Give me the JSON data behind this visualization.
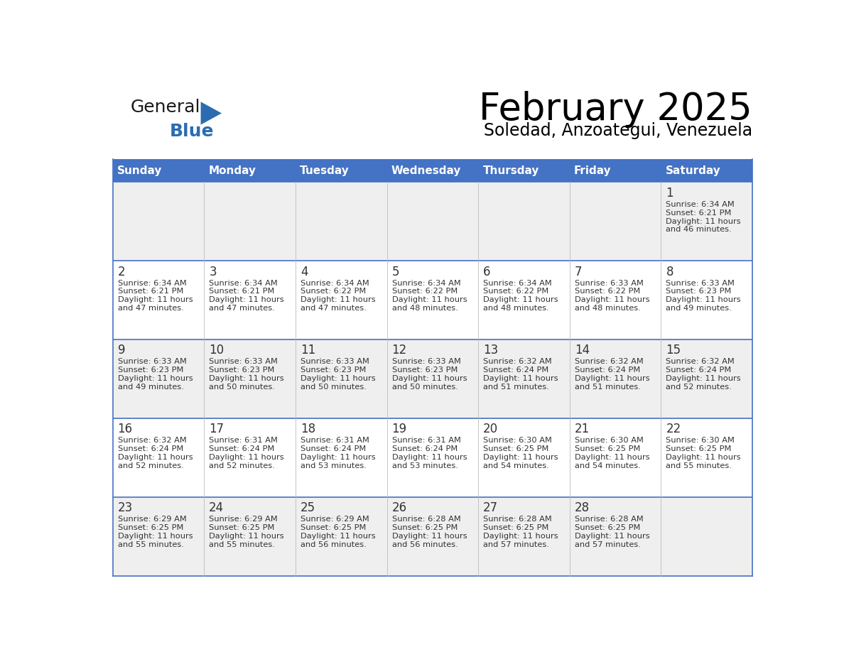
{
  "title": "February 2025",
  "subtitle": "Soledad, Anzoategui, Venezuela",
  "days_of_week": [
    "Sunday",
    "Monday",
    "Tuesday",
    "Wednesday",
    "Thursday",
    "Friday",
    "Saturday"
  ],
  "header_bg": "#4472C4",
  "header_text": "#FFFFFF",
  "cell_bg_odd": "#EFEFEF",
  "cell_bg_even": "#FFFFFF",
  "grid_line_color": "#4472C4",
  "text_color": "#333333",
  "day_num_color": "#333333",
  "logo_general_color": "#1a1a1a",
  "logo_blue_color": "#2B6CB0",
  "calendar": [
    [
      null,
      null,
      null,
      null,
      null,
      null,
      1
    ],
    [
      2,
      3,
      4,
      5,
      6,
      7,
      8
    ],
    [
      9,
      10,
      11,
      12,
      13,
      14,
      15
    ],
    [
      16,
      17,
      18,
      19,
      20,
      21,
      22
    ],
    [
      23,
      24,
      25,
      26,
      27,
      28,
      null
    ]
  ],
  "cell_data": {
    "1": {
      "sunrise": "6:34 AM",
      "sunset": "6:21 PM",
      "daylight_hours": "11 hours",
      "daylight_min": "and 46 minutes."
    },
    "2": {
      "sunrise": "6:34 AM",
      "sunset": "6:21 PM",
      "daylight_hours": "11 hours",
      "daylight_min": "and 47 minutes."
    },
    "3": {
      "sunrise": "6:34 AM",
      "sunset": "6:21 PM",
      "daylight_hours": "11 hours",
      "daylight_min": "and 47 minutes."
    },
    "4": {
      "sunrise": "6:34 AM",
      "sunset": "6:22 PM",
      "daylight_hours": "11 hours",
      "daylight_min": "and 47 minutes."
    },
    "5": {
      "sunrise": "6:34 AM",
      "sunset": "6:22 PM",
      "daylight_hours": "11 hours",
      "daylight_min": "and 48 minutes."
    },
    "6": {
      "sunrise": "6:34 AM",
      "sunset": "6:22 PM",
      "daylight_hours": "11 hours",
      "daylight_min": "and 48 minutes."
    },
    "7": {
      "sunrise": "6:33 AM",
      "sunset": "6:22 PM",
      "daylight_hours": "11 hours",
      "daylight_min": "and 48 minutes."
    },
    "8": {
      "sunrise": "6:33 AM",
      "sunset": "6:23 PM",
      "daylight_hours": "11 hours",
      "daylight_min": "and 49 minutes."
    },
    "9": {
      "sunrise": "6:33 AM",
      "sunset": "6:23 PM",
      "daylight_hours": "11 hours",
      "daylight_min": "and 49 minutes."
    },
    "10": {
      "sunrise": "6:33 AM",
      "sunset": "6:23 PM",
      "daylight_hours": "11 hours",
      "daylight_min": "and 50 minutes."
    },
    "11": {
      "sunrise": "6:33 AM",
      "sunset": "6:23 PM",
      "daylight_hours": "11 hours",
      "daylight_min": "and 50 minutes."
    },
    "12": {
      "sunrise": "6:33 AM",
      "sunset": "6:23 PM",
      "daylight_hours": "11 hours",
      "daylight_min": "and 50 minutes."
    },
    "13": {
      "sunrise": "6:32 AM",
      "sunset": "6:24 PM",
      "daylight_hours": "11 hours",
      "daylight_min": "and 51 minutes."
    },
    "14": {
      "sunrise": "6:32 AM",
      "sunset": "6:24 PM",
      "daylight_hours": "11 hours",
      "daylight_min": "and 51 minutes."
    },
    "15": {
      "sunrise": "6:32 AM",
      "sunset": "6:24 PM",
      "daylight_hours": "11 hours",
      "daylight_min": "and 52 minutes."
    },
    "16": {
      "sunrise": "6:32 AM",
      "sunset": "6:24 PM",
      "daylight_hours": "11 hours",
      "daylight_min": "and 52 minutes."
    },
    "17": {
      "sunrise": "6:31 AM",
      "sunset": "6:24 PM",
      "daylight_hours": "11 hours",
      "daylight_min": "and 52 minutes."
    },
    "18": {
      "sunrise": "6:31 AM",
      "sunset": "6:24 PM",
      "daylight_hours": "11 hours",
      "daylight_min": "and 53 minutes."
    },
    "19": {
      "sunrise": "6:31 AM",
      "sunset": "6:24 PM",
      "daylight_hours": "11 hours",
      "daylight_min": "and 53 minutes."
    },
    "20": {
      "sunrise": "6:30 AM",
      "sunset": "6:25 PM",
      "daylight_hours": "11 hours",
      "daylight_min": "and 54 minutes."
    },
    "21": {
      "sunrise": "6:30 AM",
      "sunset": "6:25 PM",
      "daylight_hours": "11 hours",
      "daylight_min": "and 54 minutes."
    },
    "22": {
      "sunrise": "6:30 AM",
      "sunset": "6:25 PM",
      "daylight_hours": "11 hours",
      "daylight_min": "and 55 minutes."
    },
    "23": {
      "sunrise": "6:29 AM",
      "sunset": "6:25 PM",
      "daylight_hours": "11 hours",
      "daylight_min": "and 55 minutes."
    },
    "24": {
      "sunrise": "6:29 AM",
      "sunset": "6:25 PM",
      "daylight_hours": "11 hours",
      "daylight_min": "and 55 minutes."
    },
    "25": {
      "sunrise": "6:29 AM",
      "sunset": "6:25 PM",
      "daylight_hours": "11 hours",
      "daylight_min": "and 56 minutes."
    },
    "26": {
      "sunrise": "6:28 AM",
      "sunset": "6:25 PM",
      "daylight_hours": "11 hours",
      "daylight_min": "and 56 minutes."
    },
    "27": {
      "sunrise": "6:28 AM",
      "sunset": "6:25 PM",
      "daylight_hours": "11 hours",
      "daylight_min": "and 57 minutes."
    },
    "28": {
      "sunrise": "6:28 AM",
      "sunset": "6:25 PM",
      "daylight_hours": "11 hours",
      "daylight_min": "and 57 minutes."
    }
  }
}
